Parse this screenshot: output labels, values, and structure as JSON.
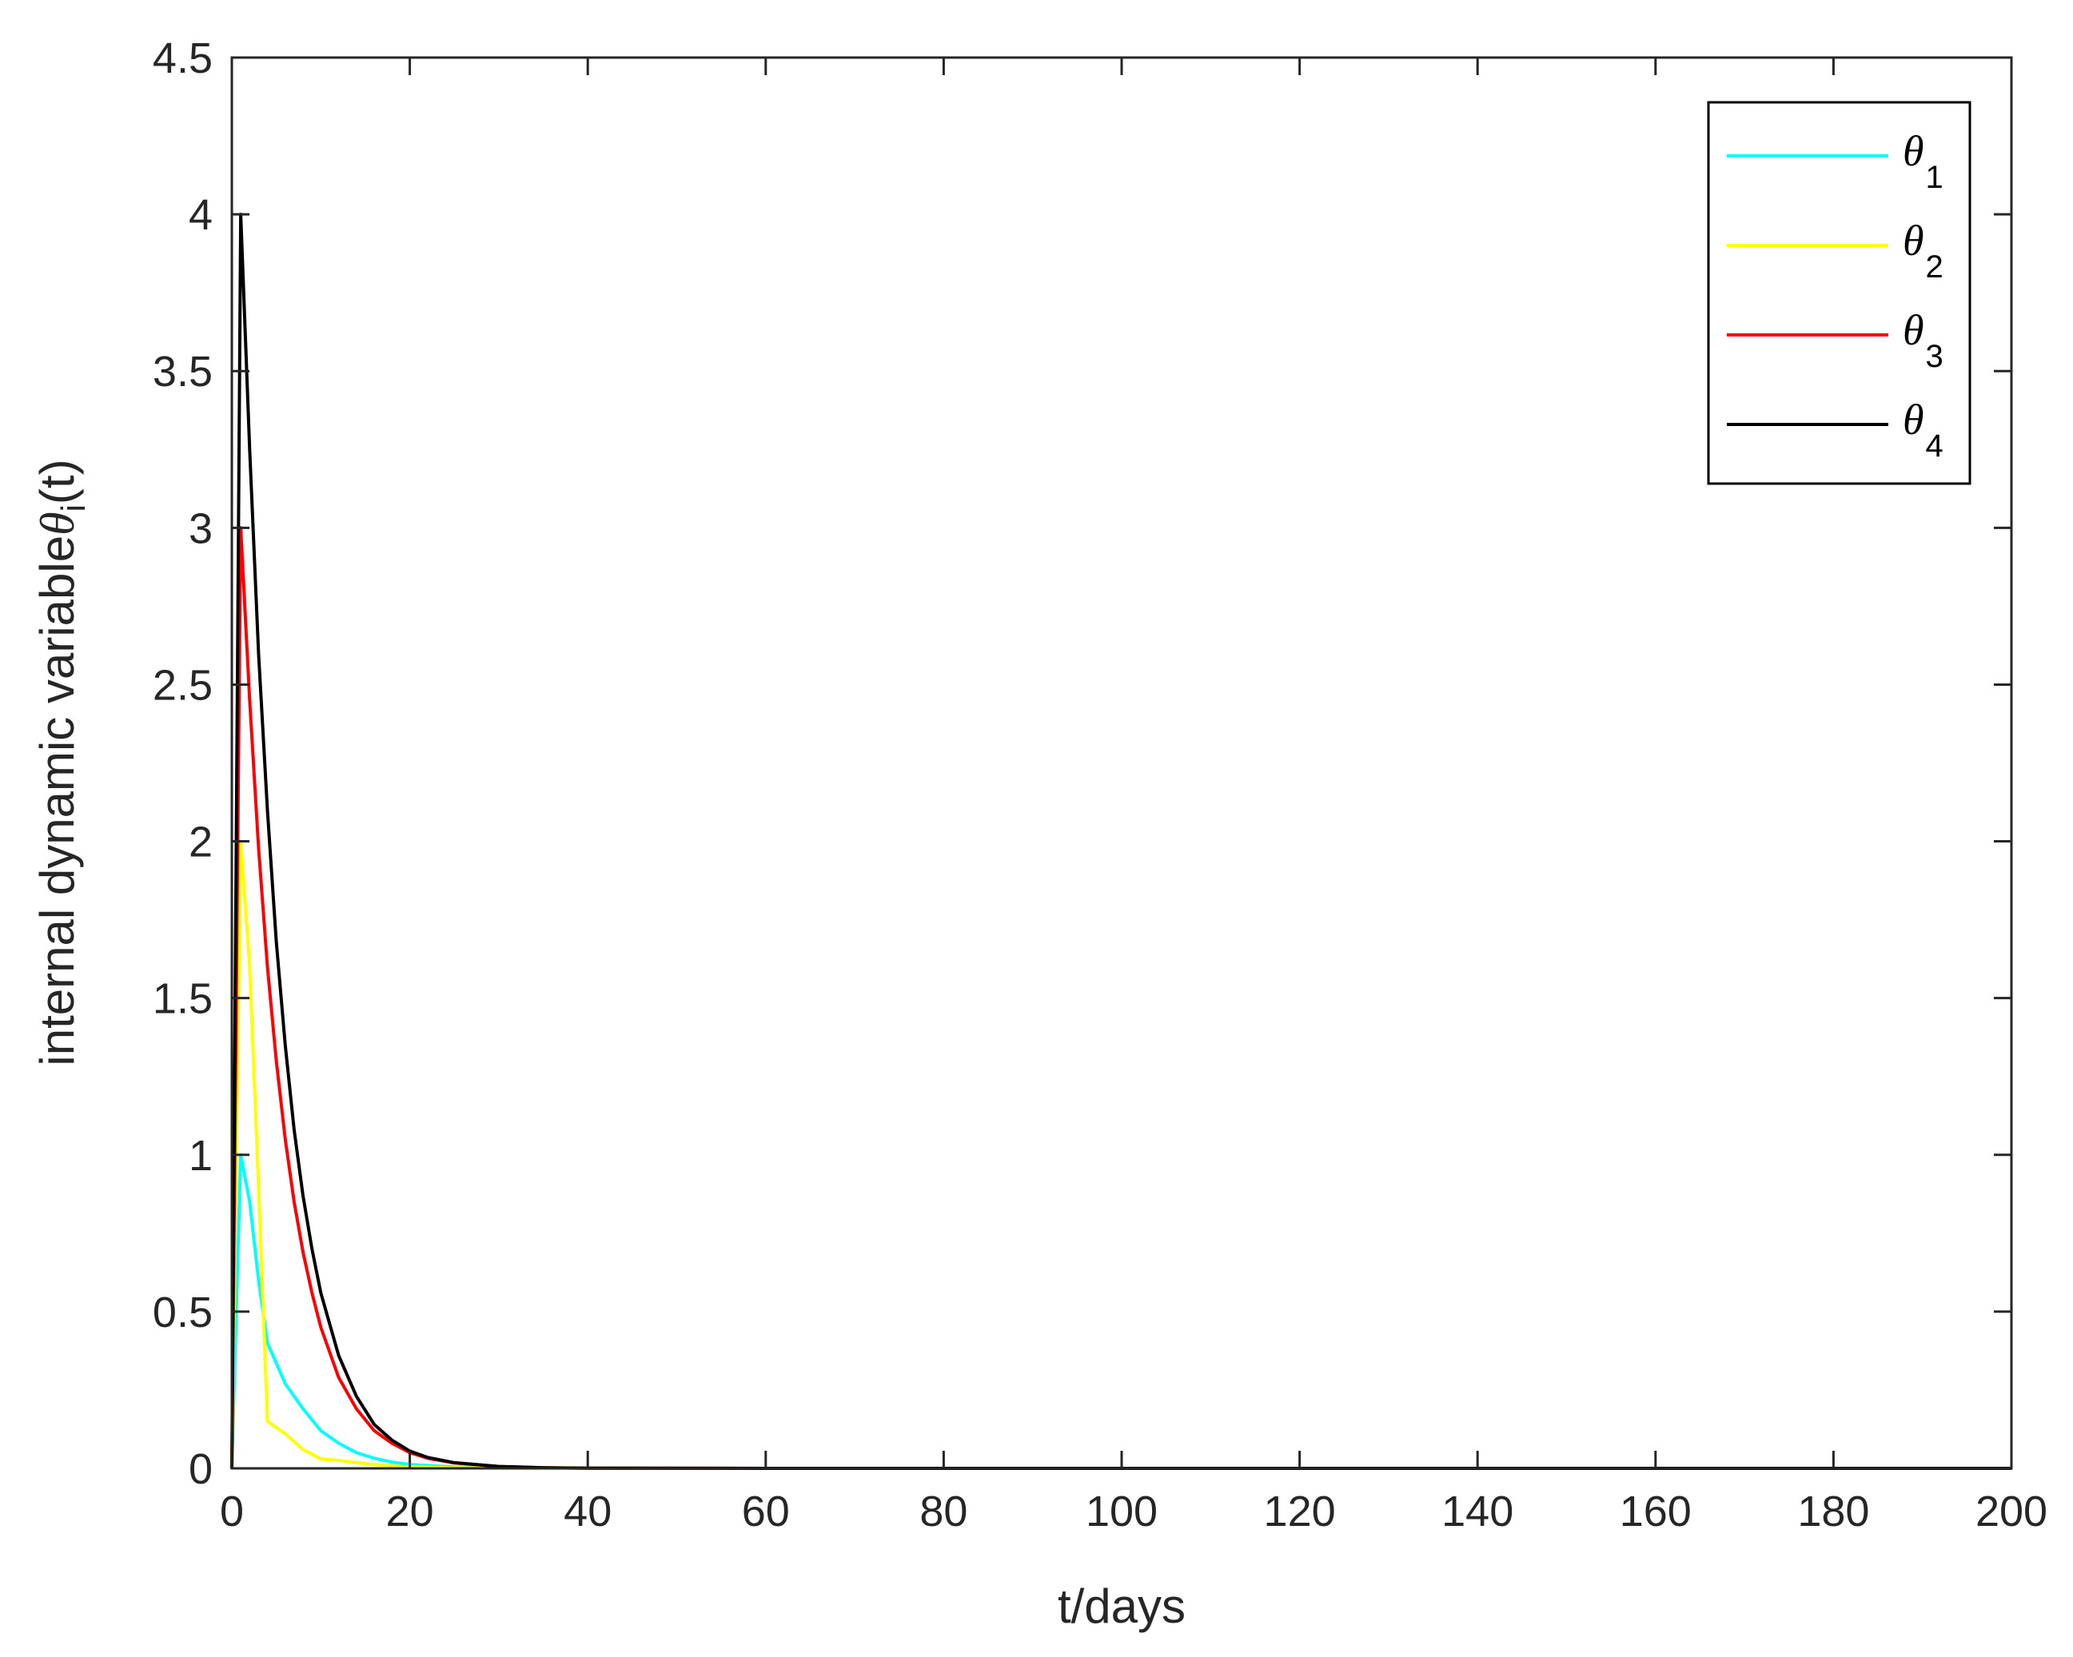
{
  "chart_data": {
    "type": "line",
    "title": "",
    "xlabel": "t/days",
    "ylabel": {
      "text": "internal dynamic variable",
      "symbol": "θ",
      "subscript": "i",
      "suffix": "(t)"
    },
    "xlim": [
      0,
      200
    ],
    "ylim": [
      0,
      4.5
    ],
    "xticks": [
      0,
      20,
      40,
      60,
      80,
      100,
      120,
      140,
      160,
      180,
      200
    ],
    "yticks": [
      0,
      0.5,
      1,
      1.5,
      2,
      2.5,
      3,
      3.5,
      4,
      4.5
    ],
    "xtick_labels": [
      "0",
      "20",
      "40",
      "60",
      "80",
      "100",
      "120",
      "140",
      "160",
      "180",
      "200"
    ],
    "ytick_labels": [
      "0",
      "0.5",
      "1",
      "1.5",
      "2",
      "2.5",
      "3",
      "3.5",
      "4",
      "4.5"
    ],
    "grid": false,
    "legend_position": "top-right",
    "series": [
      {
        "name": "θ1",
        "symbol": "θ",
        "subscript": "1",
        "color": "#00ffff",
        "x": [
          0,
          1,
          2,
          3,
          4,
          6,
          8,
          10,
          12,
          14,
          16,
          18,
          20,
          25,
          30,
          40,
          60,
          100,
          200
        ],
        "y": [
          0,
          1.0,
          0.85,
          0.6,
          0.4,
          0.27,
          0.19,
          0.12,
          0.08,
          0.05,
          0.032,
          0.02,
          0.012,
          0.004,
          0.0015,
          0.0002,
          0,
          0,
          0
        ]
      },
      {
        "name": "θ2",
        "symbol": "θ",
        "subscript": "2",
        "color": "#ffff00",
        "x": [
          0,
          1,
          2,
          3,
          4,
          6,
          8,
          10,
          12,
          14,
          16,
          18,
          20,
          25,
          30,
          40,
          60,
          100,
          200
        ],
        "y": [
          0,
          2.0,
          1.6,
          0.9,
          0.15,
          0.11,
          0.06,
          0.03,
          0.025,
          0.018,
          0.012,
          0.008,
          0.005,
          0.002,
          0.001,
          0.0002,
          0,
          0,
          0
        ]
      },
      {
        "name": "θ3",
        "symbol": "θ",
        "subscript": "3",
        "color": "#ff0000",
        "x": [
          0,
          1,
          2,
          3,
          4,
          5,
          6,
          7,
          8,
          9,
          10,
          12,
          14,
          16,
          18,
          20,
          22,
          25,
          30,
          35,
          40,
          60,
          100,
          200
        ],
        "y": [
          0,
          3.0,
          2.45,
          1.98,
          1.6,
          1.3,
          1.05,
          0.85,
          0.69,
          0.56,
          0.45,
          0.29,
          0.19,
          0.12,
          0.08,
          0.05,
          0.032,
          0.017,
          0.006,
          0.002,
          0.0008,
          0,
          0,
          0
        ]
      },
      {
        "name": "θ4",
        "symbol": "θ",
        "subscript": "4",
        "color": "#000000",
        "x": [
          0,
          1,
          2,
          3,
          4,
          5,
          6,
          7,
          8,
          9,
          10,
          12,
          14,
          16,
          18,
          20,
          22,
          25,
          30,
          35,
          40,
          60,
          100,
          200
        ],
        "y": [
          0,
          4.0,
          3.25,
          2.6,
          2.1,
          1.68,
          1.35,
          1.08,
          0.87,
          0.7,
          0.56,
          0.36,
          0.23,
          0.14,
          0.09,
          0.055,
          0.035,
          0.018,
          0.006,
          0.002,
          0.0008,
          0,
          0,
          0
        ]
      }
    ]
  }
}
